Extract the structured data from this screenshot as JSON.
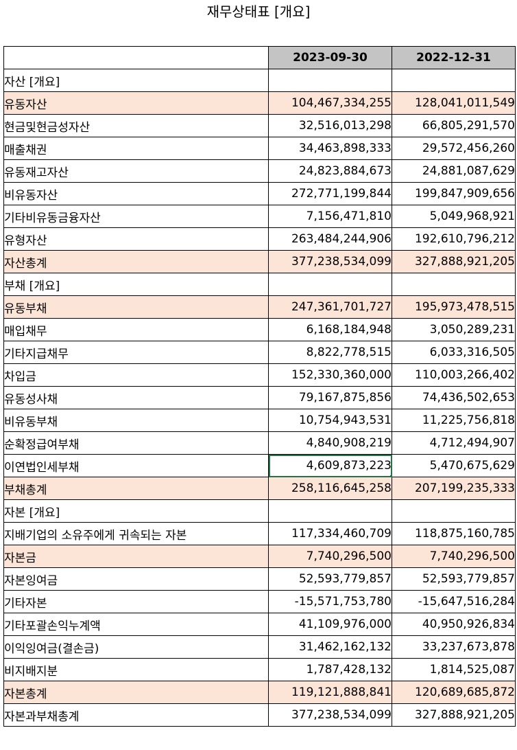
{
  "title": "재무상태표 [개요]",
  "columns": [
    "2023-09-30",
    "2022-12-31"
  ],
  "rows": [
    {
      "label": "자산 [개요]",
      "level": 0,
      "highlight": false,
      "v1": "",
      "v2": ""
    },
    {
      "label": "유동자산",
      "level": 1,
      "highlight": true,
      "v1": "104,467,334,255",
      "v2": "128,041,011,549"
    },
    {
      "label": "현금및현금성자산",
      "level": 2,
      "highlight": false,
      "v1": "32,516,013,298",
      "v2": "66,805,291,570"
    },
    {
      "label": "매출채권",
      "level": 2,
      "highlight": false,
      "v1": "34,463,898,333",
      "v2": "29,572,456,260"
    },
    {
      "label": "유동재고자산",
      "level": 2,
      "highlight": false,
      "v1": "24,823,884,673",
      "v2": "24,881,087,629"
    },
    {
      "label": "비유동자산",
      "level": 1,
      "highlight": false,
      "v1": "272,771,199,844",
      "v2": "199,847,909,656"
    },
    {
      "label": "기타비유동금융자산",
      "level": 2,
      "highlight": false,
      "v1": "7,156,471,810",
      "v2": "5,049,968,921"
    },
    {
      "label": "유형자산",
      "level": 2,
      "highlight": false,
      "v1": "263,484,244,906",
      "v2": "192,610,796,212"
    },
    {
      "label": "자산총계",
      "level": 1,
      "highlight": true,
      "v1": "377,238,534,099",
      "v2": "327,888,921,205"
    },
    {
      "label": "부채 [개요]",
      "level": 0,
      "highlight": false,
      "v1": "",
      "v2": ""
    },
    {
      "label": "유동부채",
      "level": 1,
      "highlight": true,
      "v1": "247,361,701,727",
      "v2": "195,973,478,515"
    },
    {
      "label": "매입채무",
      "level": 2,
      "highlight": false,
      "v1": "6,168,184,948",
      "v2": "3,050,289,231"
    },
    {
      "label": "기타지급채무",
      "level": 2,
      "highlight": false,
      "v1": "8,822,778,515",
      "v2": "6,033,316,505"
    },
    {
      "label": "차입금",
      "level": 2,
      "highlight": false,
      "v1": "152,330,360,000",
      "v2": "110,003,266,402"
    },
    {
      "label": "유동성사채",
      "level": 2,
      "highlight": false,
      "v1": "79,167,875,856",
      "v2": "74,436,502,653"
    },
    {
      "label": "비유동부채",
      "level": 1,
      "highlight": false,
      "v1": "10,754,943,531",
      "v2": "11,225,756,818"
    },
    {
      "label": "순확정급여부채",
      "level": 2,
      "highlight": false,
      "v1": "4,840,908,219",
      "v2": "4,712,494,907"
    },
    {
      "label": "이연법인세부채",
      "level": 2,
      "highlight": false,
      "v1": "4,609,873,223",
      "v2": "5,470,675,629",
      "selected": true
    },
    {
      "label": "부채총계",
      "level": 1,
      "highlight": true,
      "v1": "258,116,645,258",
      "v2": "207,199,235,333"
    },
    {
      "label": "자본 [개요]",
      "level": 0,
      "highlight": false,
      "v1": "",
      "v2": ""
    },
    {
      "label": "지배기업의 소유주에게 귀속되는 자본",
      "level": 1,
      "highlight": false,
      "v1": "117,334,460,709",
      "v2": "118,875,160,785"
    },
    {
      "label": "자본금",
      "level": 2,
      "highlight": true,
      "v1": "7,740,296,500",
      "v2": "7,740,296,500"
    },
    {
      "label": "자본잉여금",
      "level": 2,
      "highlight": false,
      "v1": "52,593,779,857",
      "v2": "52,593,779,857"
    },
    {
      "label": "기타자본",
      "level": 2,
      "highlight": false,
      "v1": "-15,571,753,780",
      "v2": "-15,647,516,284"
    },
    {
      "label": "기타포괄손익누계액",
      "level": 2,
      "highlight": false,
      "v1": "41,109,976,000",
      "v2": "40,950,926,834"
    },
    {
      "label": "이익잉여금(결손금)",
      "level": 2,
      "highlight": false,
      "v1": "31,462,162,132",
      "v2": "33,237,673,878"
    },
    {
      "label": "비지배지분",
      "level": 1,
      "highlight": false,
      "v1": "1,787,428,132",
      "v2": "1,814,525,087"
    },
    {
      "label": "자본총계",
      "level": 1,
      "highlight": true,
      "v1": "119,121,888,841",
      "v2": "120,689,685,872"
    },
    {
      "label": "자본과부채총계",
      "level": 0,
      "highlight": false,
      "v1": "377,238,534,099",
      "v2": "327,888,921,205"
    }
  ],
  "colors": {
    "header": "#c4c4c4",
    "highlight": "#fce4d6",
    "selection": "#217346"
  }
}
